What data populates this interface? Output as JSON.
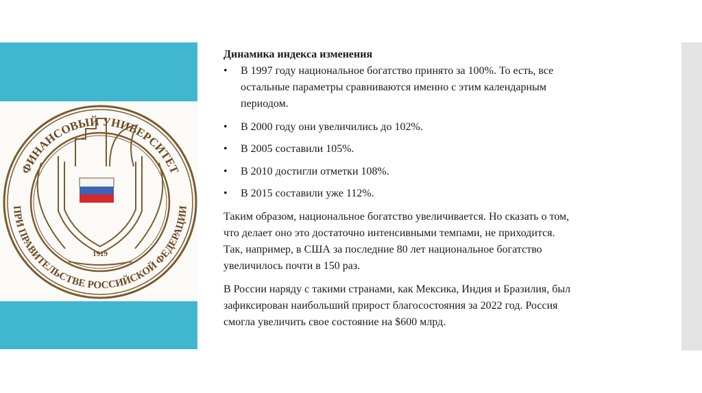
{
  "logo": {
    "top_text": "ФИНАНСОВЫЙ УНИВЕРСИТЕТ",
    "bottom_text": "ПРИ ПРАВИТЕЛЬСТВЕ РОССИЙСКОЙ ФЕДЕРАЦИИ",
    "year": "1919"
  },
  "colors": {
    "accent": "#41b6cf",
    "logo_brown": "#7a5a2e",
    "side_bar": "#e3e3e3"
  },
  "slide": {
    "title": "Динамика индекса изменения",
    "bullet_symbol": "•",
    "bullets": [
      {
        "lines": [
          "В 1997 году национальное богатство принято за 100%. То есть, все",
          "остальные параметры сравниваются именно с этим календарным",
          "периодом."
        ]
      },
      {
        "lines": [
          "В 2000 году они увеличились до 102%."
        ]
      },
      {
        "lines": [
          "В 2005 составили 105%."
        ]
      },
      {
        "lines": [
          "В 2010 достигли отметки 108%."
        ]
      },
      {
        "lines": [
          "В 2015 составили уже 112%."
        ]
      }
    ],
    "paragraphs": [
      {
        "lines": [
          "Таким образом, национальное богатство увеличивается. Но сказать о том,",
          "что делает оно это достаточно интенсивными темпами, не приходится.",
          "Так, например, в США за последние 80 лет национальное богатство",
          "увеличилось почти в 150 раз."
        ]
      },
      {
        "lines": [
          "В России наряду с такими странами, как Мексика, Индия и Бразилия, был",
          "зафиксирован наибольший прирост благосостояния за 2022 год. Россия",
          "смогла увеличить свое состояние на $600 млрд."
        ]
      }
    ]
  }
}
